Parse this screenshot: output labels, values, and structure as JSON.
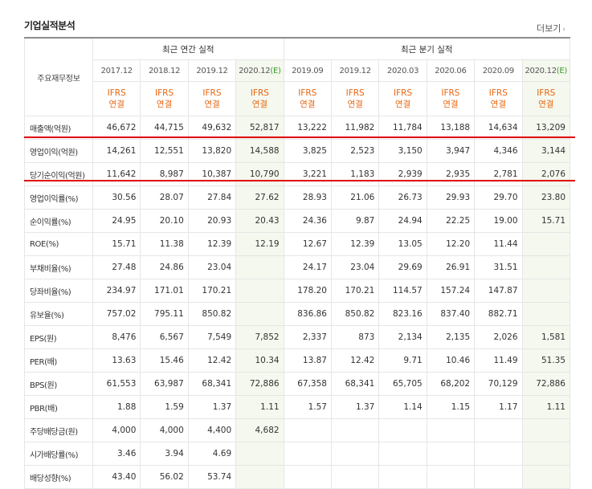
{
  "section_title": "기업실적분석",
  "more_link": "더보기",
  "row_header_label": "주요재무정보",
  "groups": {
    "annual": "최근 연간 실적",
    "quarterly": "최근 분기 실적"
  },
  "columns": [
    {
      "period": "2017.12",
      "est": "",
      "ifrs": "IFRS",
      "basis": "연결",
      "estimate": false
    },
    {
      "period": "2018.12",
      "est": "",
      "ifrs": "IFRS",
      "basis": "연결",
      "estimate": false
    },
    {
      "period": "2019.12",
      "est": "",
      "ifrs": "IFRS",
      "basis": "연결",
      "estimate": false
    },
    {
      "period": "2020.12",
      "est": "(E)",
      "ifrs": "IFRS",
      "basis": "연결",
      "estimate": true
    },
    {
      "period": "2019.09",
      "est": "",
      "ifrs": "IFRS",
      "basis": "연결",
      "estimate": false
    },
    {
      "period": "2019.12",
      "est": "",
      "ifrs": "IFRS",
      "basis": "연결",
      "estimate": false
    },
    {
      "period": "2020.03",
      "est": "",
      "ifrs": "IFRS",
      "basis": "연결",
      "estimate": false
    },
    {
      "period": "2020.06",
      "est": "",
      "ifrs": "IFRS",
      "basis": "연결",
      "estimate": false
    },
    {
      "period": "2020.09",
      "est": "",
      "ifrs": "IFRS",
      "basis": "연결",
      "estimate": false
    },
    {
      "period": "2020.12",
      "est": "(E)",
      "ifrs": "IFRS",
      "basis": "연결",
      "estimate": true
    }
  ],
  "rows": [
    {
      "label": "매출액(억원)",
      "values": [
        "46,672",
        "44,715",
        "49,632",
        "52,817",
        "13,222",
        "11,982",
        "11,784",
        "13,188",
        "14,634",
        "13,209"
      ]
    },
    {
      "label": "영업이익(억원)",
      "values": [
        "14,261",
        "12,551",
        "13,820",
        "14,588",
        "3,825",
        "2,523",
        "3,150",
        "3,947",
        "4,346",
        "3,144"
      ]
    },
    {
      "label": "당기순이익(억원)",
      "values": [
        "11,642",
        "8,987",
        "10,387",
        "10,790",
        "3,221",
        "1,183",
        "2,939",
        "2,935",
        "2,781",
        "2,076"
      ]
    },
    {
      "label": "영업이익률(%)",
      "values": [
        "30.56",
        "28.07",
        "27.84",
        "27.62",
        "28.93",
        "21.06",
        "26.73",
        "29.93",
        "29.70",
        "23.80"
      ]
    },
    {
      "label": "순이익률(%)",
      "values": [
        "24.95",
        "20.10",
        "20.93",
        "20.43",
        "24.36",
        "9.87",
        "24.94",
        "22.25",
        "19.00",
        "15.71"
      ]
    },
    {
      "label": "ROE(%)",
      "values": [
        "15.71",
        "11.38",
        "12.39",
        "12.19",
        "12.67",
        "12.39",
        "13.05",
        "12.20",
        "11.44",
        ""
      ]
    },
    {
      "label": "부채비율(%)",
      "values": [
        "27.48",
        "24.86",
        "23.04",
        "",
        "24.17",
        "23.04",
        "29.69",
        "26.91",
        "31.51",
        ""
      ]
    },
    {
      "label": "당좌비율(%)",
      "values": [
        "234.97",
        "171.01",
        "170.21",
        "",
        "178.20",
        "170.21",
        "114.57",
        "157.24",
        "147.87",
        ""
      ]
    },
    {
      "label": "유보율(%)",
      "values": [
        "757.02",
        "795.11",
        "850.82",
        "",
        "836.86",
        "850.82",
        "823.16",
        "837.40",
        "882.71",
        ""
      ]
    },
    {
      "label": "EPS(원)",
      "values": [
        "8,476",
        "6,567",
        "7,549",
        "7,852",
        "2,337",
        "873",
        "2,134",
        "2,135",
        "2,026",
        "1,581"
      ]
    },
    {
      "label": "PER(배)",
      "values": [
        "13.63",
        "15.46",
        "12.42",
        "10.34",
        "13.87",
        "12.42",
        "9.71",
        "10.46",
        "11.49",
        "51.35"
      ]
    },
    {
      "label": "BPS(원)",
      "values": [
        "61,553",
        "63,987",
        "68,341",
        "72,886",
        "67,358",
        "68,341",
        "65,705",
        "68,202",
        "70,129",
        "72,886"
      ]
    },
    {
      "label": "PBR(배)",
      "values": [
        "1.88",
        "1.59",
        "1.37",
        "1.11",
        "1.57",
        "1.37",
        "1.14",
        "1.15",
        "1.17",
        "1.11"
      ]
    },
    {
      "label": "주당배당금(원)",
      "values": [
        "4,000",
        "4,000",
        "4,400",
        "4,682",
        "",
        "",
        "",
        "",
        "",
        ""
      ]
    },
    {
      "label": "시가배당률(%)",
      "values": [
        "3.46",
        "3.94",
        "4.69",
        "",
        "",
        "",
        "",
        "",
        "",
        ""
      ]
    },
    {
      "label": "배당성향(%)",
      "values": [
        "43.40",
        "56.02",
        "53.74",
        "",
        "",
        "",
        "",
        "",
        "",
        ""
      ]
    }
  ],
  "colors": {
    "ifrs_text": "#e8650f",
    "estimate_bg": "#f4f8ee",
    "estimate_mark": "#3a9a2a",
    "highlight_line": "#e00000"
  }
}
